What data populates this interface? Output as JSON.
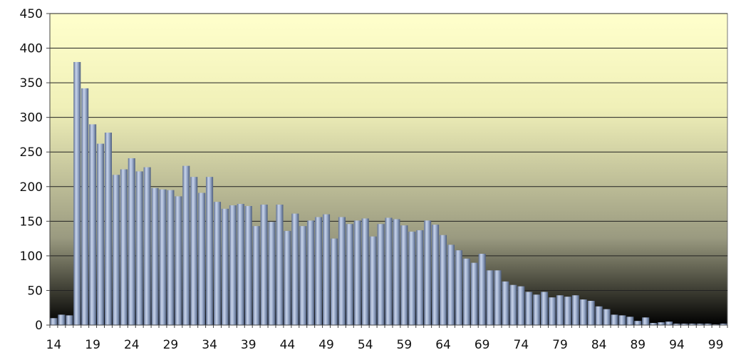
{
  "chart_data": {
    "type": "bar",
    "title": "",
    "xlabel": "",
    "ylabel": "",
    "ylim": [
      0,
      450
    ],
    "y_ticks": [
      0,
      50,
      100,
      150,
      200,
      250,
      300,
      350,
      400,
      450
    ],
    "x_tick_labels": [
      "14",
      "19",
      "24",
      "29",
      "34",
      "39",
      "44",
      "49",
      "54",
      "59",
      "64",
      "69",
      "74",
      "79",
      "84",
      "89",
      "94",
      "99"
    ],
    "grid": "horizontal",
    "legend": "none",
    "bar_color": "#8da0c0",
    "background_gradient": [
      "#ffffcc",
      "#f0f0b8",
      "#9a9a80",
      "#000000"
    ],
    "categories": [
      14,
      15,
      16,
      17,
      18,
      19,
      20,
      21,
      22,
      23,
      24,
      25,
      26,
      27,
      28,
      29,
      30,
      31,
      32,
      33,
      34,
      35,
      36,
      37,
      38,
      39,
      40,
      41,
      42,
      43,
      44,
      45,
      46,
      47,
      48,
      49,
      50,
      51,
      52,
      53,
      54,
      55,
      56,
      57,
      58,
      59,
      60,
      61,
      62,
      63,
      64,
      65,
      66,
      67,
      68,
      69,
      70,
      71,
      72,
      73,
      74,
      75,
      76,
      77,
      78,
      79,
      80,
      81,
      82,
      83,
      84,
      85,
      86,
      87,
      88,
      89,
      90,
      91,
      92,
      93,
      94,
      95,
      96,
      97,
      98,
      99,
      100
    ],
    "values": [
      10,
      15,
      14,
      380,
      342,
      290,
      262,
      278,
      217,
      225,
      241,
      222,
      228,
      198,
      196,
      195,
      186,
      230,
      214,
      191,
      214,
      178,
      168,
      173,
      175,
      172,
      143,
      174,
      149,
      174,
      136,
      161,
      143,
      151,
      156,
      160,
      125,
      156,
      146,
      151,
      154,
      128,
      146,
      155,
      153,
      144,
      135,
      137,
      151,
      145,
      130,
      116,
      108,
      96,
      90,
      103,
      79,
      79,
      63,
      58,
      56,
      48,
      44,
      48,
      40,
      43,
      41,
      43,
      37,
      35,
      27,
      23,
      15,
      14,
      12,
      6,
      11,
      3,
      4,
      5,
      2,
      2,
      2,
      2,
      2,
      1,
      2
    ]
  }
}
